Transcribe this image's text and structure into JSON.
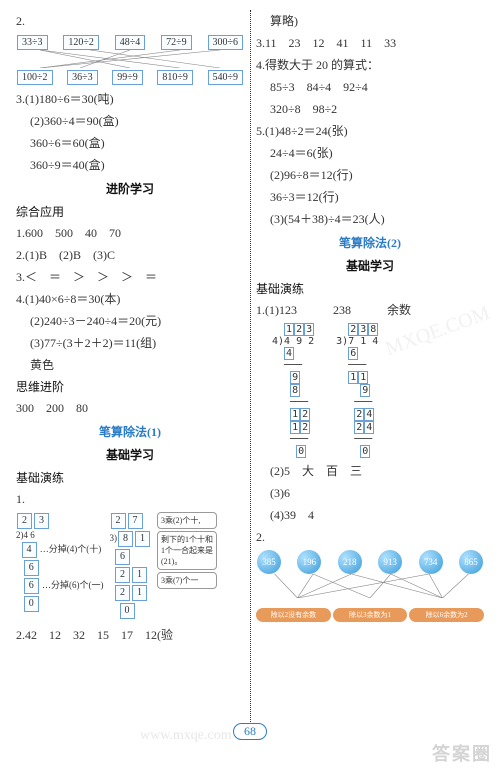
{
  "pageNumber": "68",
  "watermarks": {
    "main": "答案圈",
    "side": "MXQE.COM",
    "bottom": "www.mxqe.com"
  },
  "left": {
    "q2": {
      "top": [
        "33÷3",
        "120÷2",
        "48÷4",
        "72÷9",
        "300÷6"
      ],
      "bot": [
        "100÷2",
        "36÷3",
        "99÷9",
        "810÷9",
        "540÷9"
      ]
    },
    "q3": {
      "a": "3.(1)180÷6＝30(吨)",
      "b": "(2)360÷4＝90(盒)",
      "c": "360÷6＝60(盒)",
      "d": "360÷9＝40(盒)"
    },
    "jinjie": "进阶学习",
    "zonghe": "综合应用",
    "p1": "1.600　500　40　70",
    "p2": "2.(1)B　(2)B　(3)C",
    "p3": "3.＜　＝　＞　＞　＞　＝",
    "p4a": "4.(1)40×6÷8＝30(本)",
    "p4b": "(2)240÷3－240÷4＝20(元)",
    "p4c": "(3)77÷(3＋2＋2)＝11(组)",
    "p4d": "黄色",
    "siwei": "思维进阶",
    "sw1": "300　200　80",
    "bisuan1": "笔算除法(1)",
    "jichu": "基础学习",
    "jichuyl": "基础演练",
    "d1": {
      "label": "1.",
      "note1": "…分掉(4)个(十)",
      "note2": "…分掉(6)个(一)",
      "boxes": [
        "2",
        "3",
        "2",
        "4",
        "6",
        "4",
        "6",
        "6",
        "0"
      ],
      "r2boxes": [
        "2",
        "7",
        "3",
        "8",
        "1",
        "6",
        "2",
        "1",
        "2",
        "1",
        "0"
      ],
      "speech1": "3乘(2)个十,",
      "speech2": "剩下的1个十和1个一合起来是(21)。",
      "speech3": "3乘(7)个一"
    },
    "l2": "2.42　12　32　15　17　12(验"
  },
  "right": {
    "top": "算略)",
    "r3": "3.11　23　12　41　11　33",
    "r4a": "4.得数大于 20 的算式：",
    "r4b": "85÷3　84÷4　92÷4",
    "r4c": "320÷8　98÷2",
    "r5a": "5.(1)48÷2＝24(张)",
    "r5b": "24÷4＝6(张)",
    "r5c": "(2)96÷8＝12(行)",
    "r5d": "36÷3＝12(行)",
    "r5e": "(3)(54＋38)÷4＝23(人)",
    "bisuan2": "笔算除法(2)",
    "jichu2": "基础学习",
    "jichuyl2": "基础演练",
    "d1a": "1.(1)123　　　238　　　余数",
    "div1": [
      "  1 2 3",
      "4)4 9 2",
      "  4",
      "  ─",
      "   9",
      "   8",
      "   ─",
      "   1 2",
      "   1 2",
      "   ──",
      "    0"
    ],
    "div2": [
      "  2 3 8",
      "3)7 1 4",
      "  6",
      "  ─",
      "  1 1",
      "    9",
      "   ─",
      "   2 4",
      "   2 4",
      "   ──",
      "    0"
    ],
    "d1b": "(2)5　大　百　三",
    "d1c": "(3)6",
    "d1d": "(4)39　4",
    "q2label": "2.",
    "circles": [
      "385",
      "196",
      "218",
      "913",
      "734",
      "865"
    ],
    "ovals": [
      "除以2没有余数",
      "除以3余数为1",
      "除以6余数为2"
    ]
  },
  "colors": {
    "blue": "#2a7cc7",
    "boxBorder": "#6aa0d8",
    "orange": "#e89a5a"
  }
}
